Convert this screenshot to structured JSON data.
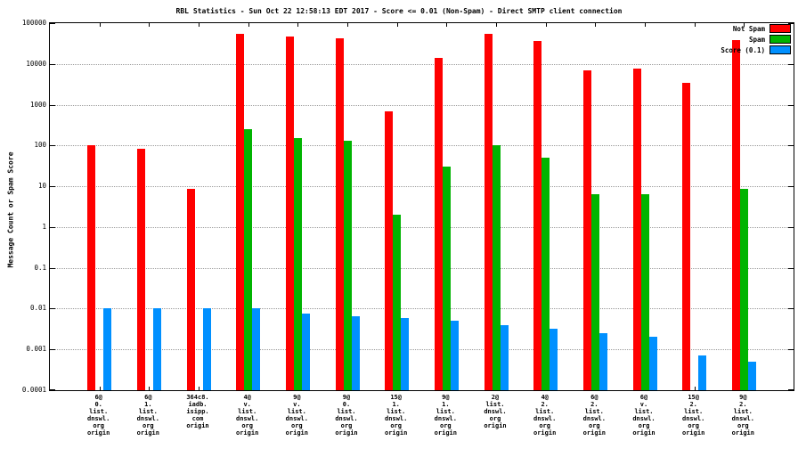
{
  "chart_data": {
    "type": "bar",
    "title": "RBL Statistics - Sun Oct 22 12:58:13 EDT 2017 - Score <= 0.01 (Non-Spam) - Direct SMTP client connection",
    "ylabel": "Message Count or Spam Score",
    "y_scale": "log",
    "ylim": [
      0.0001,
      100000
    ],
    "yticks": [
      "100000",
      "10000",
      "1000",
      "100",
      "10",
      "1",
      "0.1",
      "0.01",
      "0.001",
      "0.0001"
    ],
    "grid": true,
    "legend_position": "top-right",
    "categories": [
      [
        "6@",
        "0.",
        "list.",
        "dnswl.",
        "org",
        "origin"
      ],
      [
        "6@",
        "1.",
        "list.",
        "dnswl.",
        "org",
        "origin"
      ],
      [
        "364c8.",
        "iadb.",
        "isipp.",
        "com",
        "origin"
      ],
      [
        "4@",
        "v.",
        "list.",
        "dnswl.",
        "org",
        "origin"
      ],
      [
        "9@",
        "v.",
        "list.",
        "dnswl.",
        "org",
        "origin"
      ],
      [
        "9@",
        "0.",
        "list.",
        "dnswl.",
        "org",
        "origin"
      ],
      [
        "15@",
        "1.",
        "list.",
        "dnswl.",
        "org",
        "origin"
      ],
      [
        "9@",
        "1.",
        "list.",
        "dnswl.",
        "org",
        "origin"
      ],
      [
        "2@",
        "list.",
        "dnswl.",
        "org",
        "origin"
      ],
      [
        "4@",
        "2.",
        "list.",
        "dnswl.",
        "org",
        "origin"
      ],
      [
        "6@",
        "2.",
        "list.",
        "dnswl.",
        "org",
        "origin"
      ],
      [
        "6@",
        "v.",
        "list.",
        "dnswl.",
        "org",
        "origin"
      ],
      [
        "15@",
        "2.",
        "list.",
        "dnswl.",
        "org",
        "origin"
      ],
      [
        "9@",
        "2.",
        "list.",
        "dnswl.",
        "org",
        "origin"
      ]
    ],
    "series": [
      {
        "name": "Not Spam",
        "color": "#ff0000",
        "values": [
          100,
          85,
          8.5,
          55000,
          48000,
          42000,
          700,
          14000,
          55000,
          36000,
          7000,
          7800,
          3400,
          38000
        ]
      },
      {
        "name": "Spam",
        "color": "#00b400",
        "values": [
          null,
          null,
          null,
          250,
          150,
          130,
          2,
          30,
          100,
          50,
          6.5,
          6.5,
          null,
          8.5
        ]
      },
      {
        "name": "Score (0.1)",
        "color": "#0090ff",
        "values": [
          0.01,
          0.01,
          0.01,
          0.01,
          0.0075,
          0.0065,
          0.006,
          0.005,
          0.004,
          0.0032,
          0.0025,
          0.002,
          0.0007,
          0.0005
        ]
      }
    ]
  }
}
